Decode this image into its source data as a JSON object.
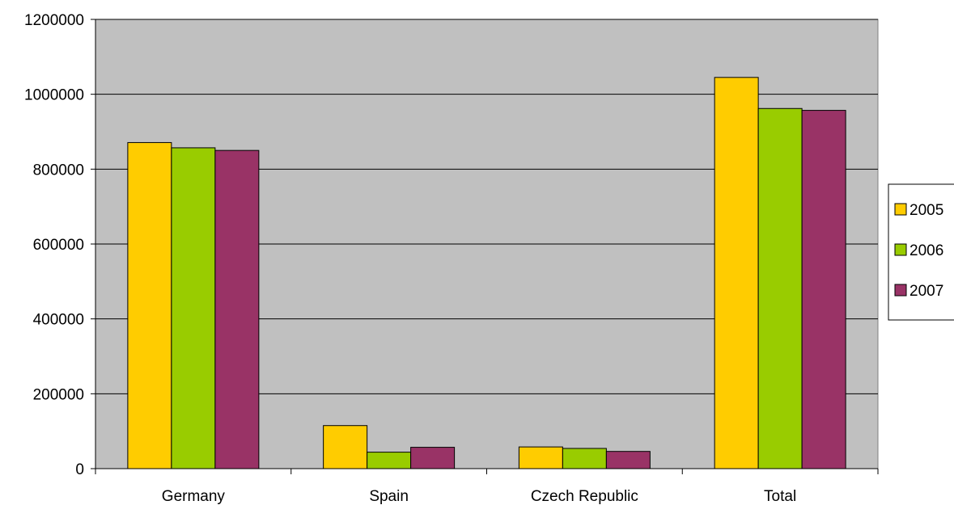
{
  "chart_data": {
    "type": "bar",
    "title": "",
    "xlabel": "",
    "ylabel": "",
    "categories": [
      "Germany",
      "Spain",
      "Czech Republic",
      "Total"
    ],
    "series": [
      {
        "name": "2005",
        "color": "#FFCC00",
        "values": [
          871000,
          115000,
          58000,
          1045000
        ]
      },
      {
        "name": "2006",
        "color": "#99CC00",
        "values": [
          857000,
          44000,
          54000,
          962000
        ]
      },
      {
        "name": "2007",
        "color": "#993366",
        "values": [
          850000,
          57000,
          46000,
          957000
        ]
      }
    ],
    "ylim": [
      0,
      1200000
    ],
    "yticks": [
      "0",
      "200000",
      "400000",
      "600000",
      "800000",
      "1000000",
      "1200000"
    ],
    "grid": true,
    "plot_background": "#C0C0C0",
    "legend_position": "right"
  }
}
